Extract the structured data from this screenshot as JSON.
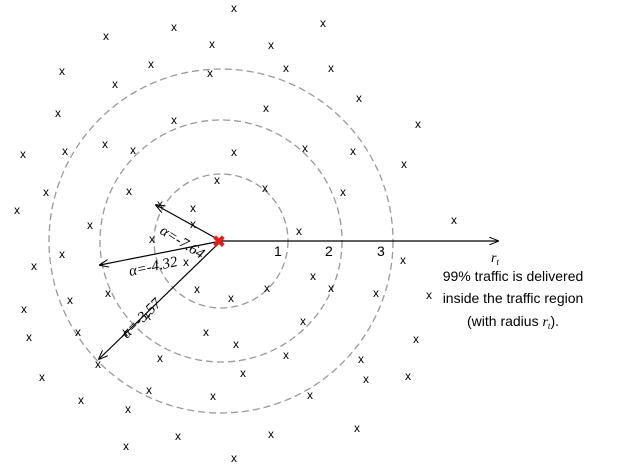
{
  "nodes": {
    "symbol": "x",
    "color": "#000000"
  },
  "center": {
    "symbol": "✖",
    "color": "#e0201b"
  },
  "rings": {
    "labels": [
      "1",
      "2",
      "3"
    ],
    "style": "dashed",
    "color": "#999999"
  },
  "axis": {
    "label_var": "r",
    "label_sub": "t"
  },
  "alphas": [
    {
      "text": "α=-7.64"
    },
    {
      "text": "α=-4.32"
    },
    {
      "text": "α=-3.57"
    }
  ],
  "note": {
    "line1": "99% traffic is delivered",
    "line2": "inside the traffic region",
    "line3_prefix": "(with radius ",
    "line3_var": "r",
    "line3_sub": "t",
    "line3_suffix": ")."
  }
}
